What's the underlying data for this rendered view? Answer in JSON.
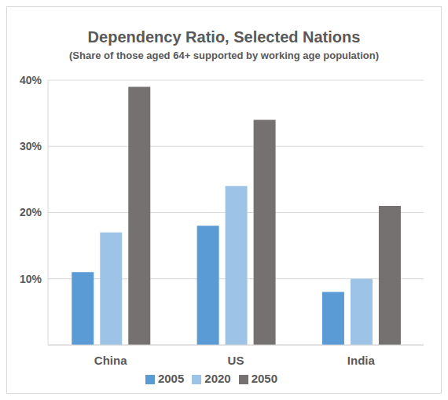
{
  "chart_data": {
    "type": "bar",
    "title": "Dependency Ratio, Selected Nations",
    "subtitle": "(Share of those aged 64+ supported by working age population)",
    "categories": [
      "China",
      "US",
      "India"
    ],
    "series": [
      {
        "name": "2005",
        "color": "#5b9bd5",
        "values": [
          11,
          18,
          8
        ]
      },
      {
        "name": "2020",
        "color": "#9dc3e6",
        "values": [
          17,
          24,
          10
        ]
      },
      {
        "name": "2050",
        "color": "#767171",
        "values": [
          39,
          34,
          21
        ]
      }
    ],
    "ylim": [
      0,
      40
    ],
    "yticks": [
      {
        "value": 10,
        "label": "10%"
      },
      {
        "value": 20,
        "label": "20%"
      },
      {
        "value": 30,
        "label": "30%"
      },
      {
        "value": 40,
        "label": "40%"
      }
    ],
    "grid": true,
    "legend": "bottom"
  }
}
